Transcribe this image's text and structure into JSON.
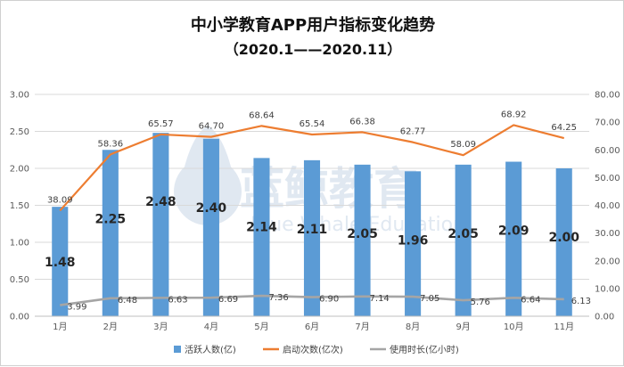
{
  "chart_data": {
    "type": "bar",
    "title": "中小学教育APP用户指标变化趋势",
    "subtitle": "（2020.1——2020.11）",
    "categories": [
      "1月",
      "2月",
      "3月",
      "4月",
      "5月",
      "6月",
      "7月",
      "8月",
      "9月",
      "10月",
      "11月"
    ],
    "y_left": {
      "range": [
        0,
        3
      ],
      "ticks": [
        "0.00",
        "0.50",
        "1.00",
        "1.50",
        "2.00",
        "2.50",
        "3.00"
      ]
    },
    "y_right": {
      "range": [
        0,
        80
      ],
      "ticks": [
        "0.00",
        "10.00",
        "20.00",
        "30.00",
        "40.00",
        "50.00",
        "60.00",
        "70.00",
        "80.00"
      ]
    },
    "series": [
      {
        "name": "活跃人数(亿)",
        "type": "bar",
        "axis": "left",
        "color": "#5b9bd5",
        "values": [
          1.48,
          2.25,
          2.48,
          2.4,
          2.14,
          2.11,
          2.05,
          1.96,
          2.05,
          2.09,
          2.0
        ],
        "labels": [
          "1.48",
          "2.25",
          "2.48",
          "2.40",
          "2.14",
          "2.11",
          "2.05",
          "1.96",
          "2.05",
          "2.09",
          "2.00"
        ]
      },
      {
        "name": "启动次数(亿次)",
        "type": "line",
        "axis": "right",
        "color": "#ed7d31",
        "values": [
          38.09,
          58.36,
          65.57,
          64.7,
          68.64,
          65.54,
          66.38,
          62.77,
          58.09,
          68.92,
          64.25
        ],
        "labels": [
          "38.09",
          "58.36",
          "65.57",
          "64.70",
          "68.64",
          "65.54",
          "66.38",
          "62.77",
          "58.09",
          "68.92",
          "64.25"
        ]
      },
      {
        "name": "使用时长(亿小时)",
        "type": "line",
        "axis": "right",
        "color": "#a5a5a5",
        "values": [
          3.99,
          6.48,
          6.63,
          6.69,
          7.36,
          6.9,
          7.14,
          7.05,
          5.76,
          6.64,
          6.13
        ],
        "labels": [
          "3.99",
          "6.48",
          "6.63",
          "6.69",
          "7.36",
          "6.90",
          "7.14",
          "7.05",
          "5.76",
          "6.64",
          "6.13"
        ]
      }
    ],
    "legend_position": "bottom",
    "watermark": {
      "cn": "蓝鲸教育",
      "en": "Blue Whale Education"
    }
  }
}
